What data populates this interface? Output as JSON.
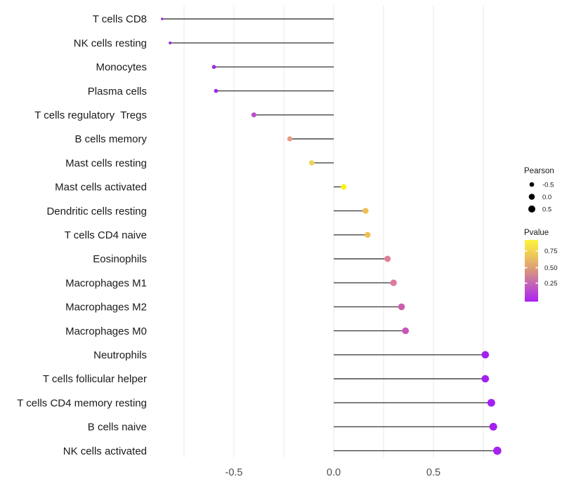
{
  "chart_data": {
    "type": "lollipop",
    "title": "",
    "xlabel": "",
    "ylabel": "",
    "xlim": [
      -0.9,
      0.92
    ],
    "grid": "vertical-only",
    "grid_values": [
      -0.75,
      -0.5,
      -0.25,
      0,
      0.25,
      0.5,
      0.75
    ],
    "x_ticks": [
      {
        "value": -0.5,
        "label": "-0.5"
      },
      {
        "value": 0.0,
        "label": "0.0"
      },
      {
        "value": 0.5,
        "label": "0.5"
      }
    ],
    "baseline_value": 0,
    "points": [
      {
        "category": "T cells CD8",
        "pearson": -0.86,
        "color": "#9226d8",
        "radius": 1.7
      },
      {
        "category": "NK cells resting",
        "pearson": -0.82,
        "color": "#9a2ade",
        "radius": 2.1
      },
      {
        "category": "Monocytes",
        "pearson": -0.6,
        "color": "#a02ce2",
        "radius": 2.9
      },
      {
        "category": "Plasma cells",
        "pearson": -0.59,
        "color": "#a02ce2",
        "radius": 2.9
      },
      {
        "category": "T cells regulatory  Tregs",
        "pearson": -0.4,
        "color": "#bb4ccb",
        "radius": 3.5
      },
      {
        "category": "B cells memory",
        "pearson": -0.22,
        "color": "#e89b80",
        "radius": 3.6
      },
      {
        "category": "Mast cells resting",
        "pearson": -0.11,
        "color": "#eed45e",
        "radius": 3.8
      },
      {
        "category": "Mast cells activated",
        "pearson": 0.05,
        "color": "#f8f112",
        "radius": 4.0
      },
      {
        "category": "Dendritic cells resting",
        "pearson": 0.16,
        "color": "#f0bf55",
        "radius": 4.2
      },
      {
        "category": "T cells CD4 naive",
        "pearson": 0.17,
        "color": "#f0bf55",
        "radius": 4.2
      },
      {
        "category": "Eosinophils",
        "pearson": 0.27,
        "color": "#df7f9a",
        "radius": 4.5
      },
      {
        "category": "Macrophages M1",
        "pearson": 0.3,
        "color": "#dc7aa1",
        "radius": 4.7
      },
      {
        "category": "Macrophages M2",
        "pearson": 0.34,
        "color": "#cd5cae",
        "radius": 4.8
      },
      {
        "category": "Macrophages M0",
        "pearson": 0.36,
        "color": "#c955b4",
        "radius": 4.8
      },
      {
        "category": "Neutrophils",
        "pearson": 0.76,
        "color": "#a321f0",
        "radius": 5.3
      },
      {
        "category": "T cells follicular helper",
        "pearson": 0.76,
        "color": "#a321f0",
        "radius": 5.3
      },
      {
        "category": "T cells CD4 memory resting",
        "pearson": 0.79,
        "color": "#a321f2",
        "radius": 5.5
      },
      {
        "category": "B cells naive",
        "pearson": 0.8,
        "color": "#a31ff2",
        "radius": 5.5
      },
      {
        "category": "NK cells activated",
        "pearson": 0.82,
        "color": "#a524ec",
        "radius": 5.8
      }
    ],
    "legend": {
      "size_legend": {
        "title": "Pearson",
        "dot_color": "#000000",
        "items": [
          {
            "label": "-0.5",
            "radius": 3.3
          },
          {
            "label": "0.0",
            "radius": 4.3
          },
          {
            "label": "0.5",
            "radius": 5.0
          }
        ]
      },
      "color_legend": {
        "title": "Pvalue",
        "range": [
          0,
          0.92
        ],
        "ticks": [
          {
            "label": "0.75",
            "t": 0.18
          },
          {
            "label": "0.50",
            "t": 0.45
          },
          {
            "label": "0.25",
            "t": 0.7
          }
        ],
        "gradient_stops": [
          {
            "offset": 0.0,
            "color": "#fbf53c"
          },
          {
            "offset": 0.25,
            "color": "#efc75a"
          },
          {
            "offset": 0.5,
            "color": "#d8947e"
          },
          {
            "offset": 0.75,
            "color": "#c05cc0"
          },
          {
            "offset": 1.0,
            "color": "#ac22f2"
          }
        ]
      }
    },
    "colors": {
      "background": "#ffffff",
      "stem": "#454545",
      "gridline": "#e9e9e9",
      "axis_tick_text": "#4d4d4d",
      "category_text": "#1a1a1a",
      "legend_text": "#1a1a1a"
    }
  }
}
